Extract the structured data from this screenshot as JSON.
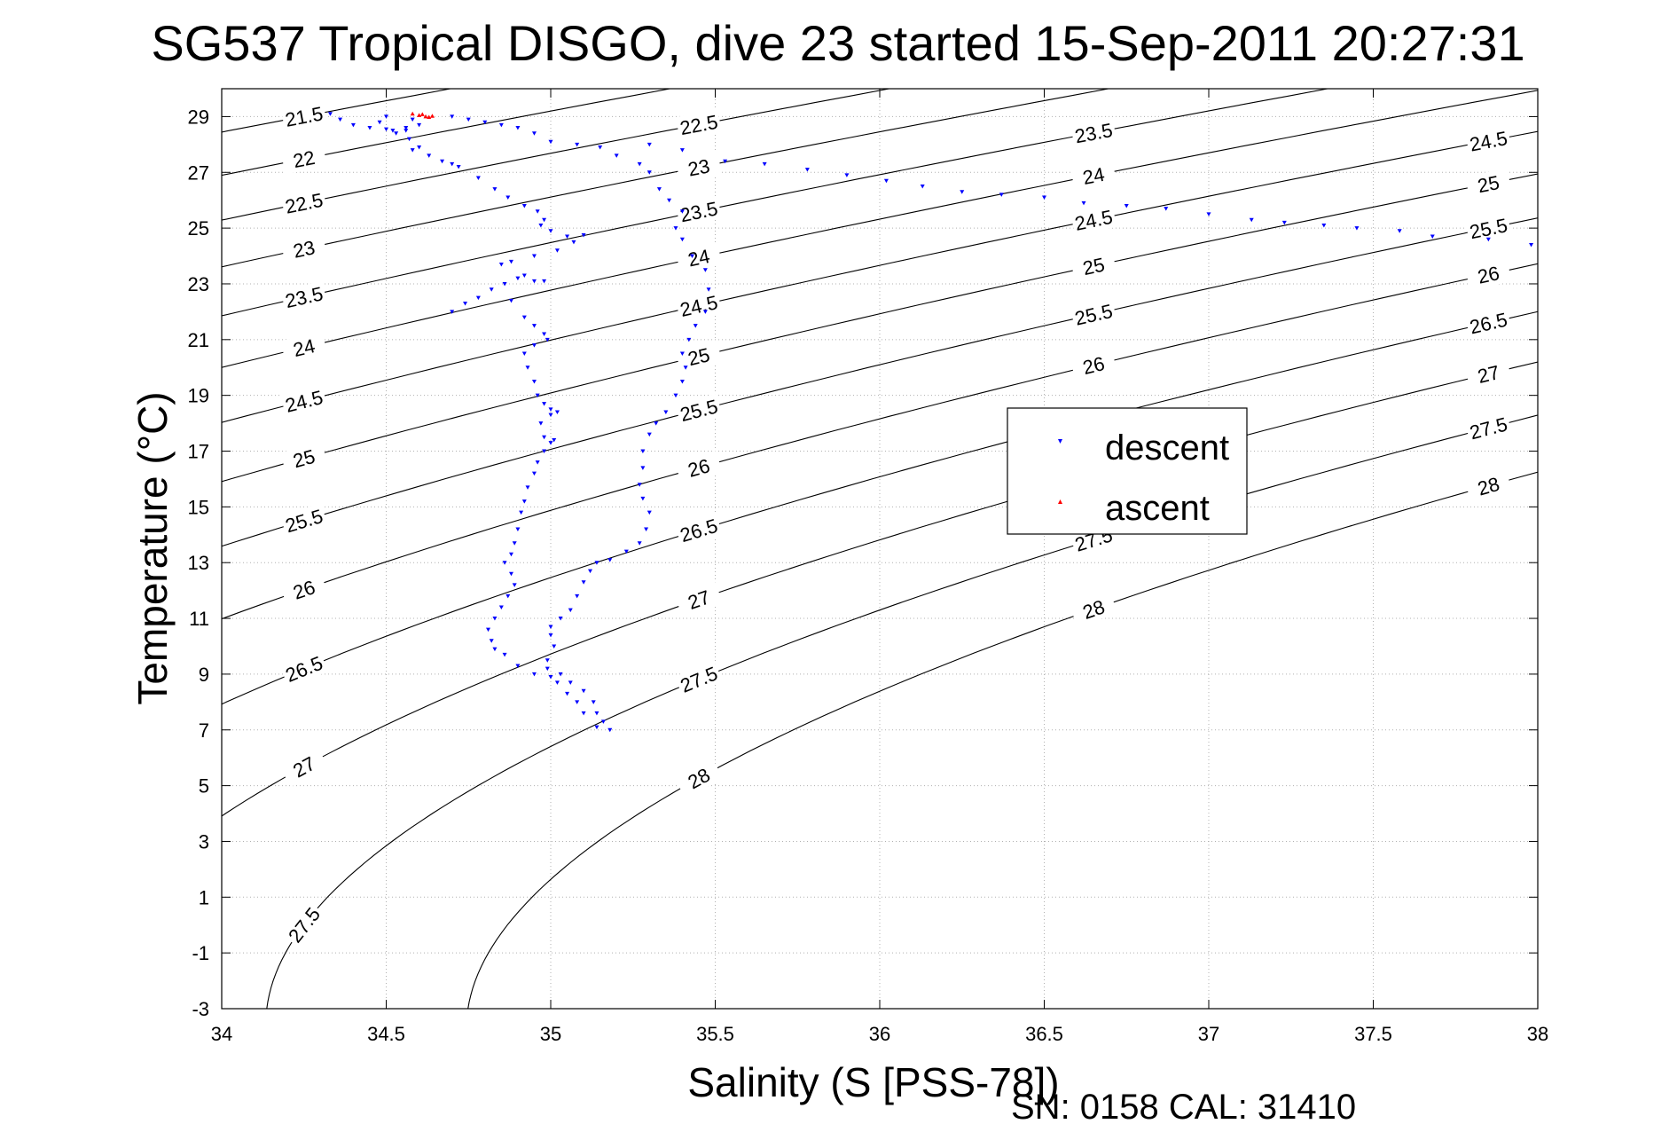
{
  "chart_data": {
    "type": "scatter",
    "title": "SG537 Tropical DISGO, dive 23 started 15-Sep-2011 20:27:31",
    "xlabel": "Salinity (S [PSS-78])",
    "ylabel": "Temperature (°C)",
    "footer": "SN: 0158  CAL: 31410",
    "xlim": [
      34,
      38
    ],
    "ylim": [
      -3,
      30
    ],
    "x_ticks": [
      34,
      34.5,
      35,
      35.5,
      36,
      36.5,
      37,
      37.5,
      38
    ],
    "y_ticks": [
      -3,
      -1,
      1,
      3,
      5,
      7,
      9,
      11,
      13,
      15,
      17,
      19,
      21,
      23,
      25,
      27,
      29
    ],
    "grid": true,
    "legend_position": "right-middle",
    "density_contours": [
      21.5,
      22,
      22.5,
      23,
      23.5,
      24,
      24.5,
      25,
      25.5,
      26,
      26.5,
      27,
      27.5,
      28
    ],
    "colors": {
      "descent": "#0000ff",
      "ascent": "#ff0000",
      "contour": "#000000",
      "grid": "#c0c0c0"
    },
    "series": [
      {
        "name": "descent",
        "marker": "triangle-down",
        "points": [
          [
            34.33,
            29.1
          ],
          [
            34.36,
            28.9
          ],
          [
            34.4,
            28.7
          ],
          [
            34.45,
            28.6
          ],
          [
            34.5,
            28.55
          ],
          [
            34.56,
            28.6
          ],
          [
            34.6,
            28.7
          ],
          [
            34.56,
            28.5
          ],
          [
            34.53,
            28.4
          ],
          [
            34.52,
            28.5
          ],
          [
            34.48,
            28.8
          ],
          [
            34.5,
            29.0
          ],
          [
            34.58,
            28.9
          ],
          [
            34.57,
            28.2
          ],
          [
            34.6,
            27.9
          ],
          [
            34.58,
            27.8
          ],
          [
            34.63,
            27.6
          ],
          [
            34.67,
            27.4
          ],
          [
            34.72,
            27.2
          ],
          [
            34.7,
            27.3
          ],
          [
            34.78,
            26.8
          ],
          [
            34.83,
            26.4
          ],
          [
            34.87,
            26.1
          ],
          [
            34.92,
            25.8
          ],
          [
            34.96,
            25.6
          ],
          [
            34.98,
            25.3
          ],
          [
            34.97,
            25.1
          ],
          [
            35.0,
            24.9
          ],
          [
            35.05,
            24.7
          ],
          [
            35.1,
            24.75
          ],
          [
            35.07,
            24.5
          ],
          [
            35.02,
            24.2
          ],
          [
            34.95,
            24.0
          ],
          [
            34.88,
            23.8
          ],
          [
            34.85,
            23.7
          ],
          [
            34.92,
            23.3
          ],
          [
            34.98,
            23.1
          ],
          [
            34.95,
            23.1
          ],
          [
            34.9,
            23.2
          ],
          [
            34.86,
            23.0
          ],
          [
            34.82,
            22.8
          ],
          [
            34.78,
            22.5
          ],
          [
            34.74,
            22.3
          ],
          [
            34.7,
            22.0
          ],
          [
            34.88,
            22.4
          ],
          [
            34.92,
            21.8
          ],
          [
            34.95,
            21.5
          ],
          [
            34.98,
            21.2
          ],
          [
            34.99,
            21.0
          ],
          [
            34.95,
            20.8
          ],
          [
            34.92,
            20.5
          ],
          [
            34.93,
            20.0
          ],
          [
            34.95,
            19.5
          ],
          [
            34.96,
            19.0
          ],
          [
            34.98,
            18.7
          ],
          [
            35.0,
            18.5
          ],
          [
            35.02,
            18.4
          ],
          [
            35.0,
            18.3
          ],
          [
            34.97,
            18.0
          ],
          [
            34.98,
            17.5
          ],
          [
            35.0,
            17.3
          ],
          [
            35.01,
            17.4
          ],
          [
            34.98,
            17.0
          ],
          [
            34.96,
            16.6
          ],
          [
            34.95,
            16.2
          ],
          [
            34.93,
            15.7
          ],
          [
            34.92,
            15.2
          ],
          [
            34.91,
            14.8
          ],
          [
            34.9,
            14.2
          ],
          [
            34.89,
            13.7
          ],
          [
            34.88,
            13.3
          ],
          [
            34.86,
            13.0
          ],
          [
            34.88,
            12.6
          ],
          [
            34.89,
            12.2
          ],
          [
            34.87,
            11.8
          ],
          [
            34.85,
            11.4
          ],
          [
            34.83,
            11.0
          ],
          [
            34.81,
            10.6
          ],
          [
            34.82,
            10.2
          ],
          [
            34.83,
            9.9
          ],
          [
            34.86,
            9.7
          ],
          [
            34.9,
            9.3
          ],
          [
            34.95,
            9.0
          ],
          [
            35.0,
            8.9
          ],
          [
            35.03,
            9.0
          ],
          [
            35.06,
            8.7
          ],
          [
            35.1,
            8.4
          ],
          [
            35.13,
            8.0
          ],
          [
            35.14,
            7.6
          ],
          [
            35.16,
            7.3
          ],
          [
            35.18,
            7.0
          ],
          [
            35.14,
            7.1
          ],
          [
            35.1,
            7.6
          ],
          [
            35.08,
            8.0
          ],
          [
            35.05,
            8.3
          ],
          [
            35.02,
            8.7
          ],
          [
            34.99,
            9.2
          ],
          [
            34.99,
            9.5
          ],
          [
            35.01,
            10.0
          ],
          [
            35.0,
            10.4
          ],
          [
            35.0,
            10.7
          ],
          [
            35.03,
            11.0
          ],
          [
            35.06,
            11.3
          ],
          [
            35.08,
            11.8
          ],
          [
            35.1,
            12.3
          ],
          [
            35.12,
            12.7
          ],
          [
            35.14,
            13.0
          ],
          [
            35.18,
            13.1
          ],
          [
            35.23,
            13.4
          ],
          [
            35.27,
            13.7
          ],
          [
            35.29,
            14.2
          ],
          [
            35.3,
            14.8
          ],
          [
            35.28,
            15.3
          ],
          [
            35.27,
            15.8
          ],
          [
            35.28,
            16.4
          ],
          [
            35.28,
            17.0
          ],
          [
            35.3,
            17.6
          ],
          [
            35.32,
            18.0
          ],
          [
            35.35,
            18.4
          ],
          [
            35.38,
            19.0
          ],
          [
            35.4,
            19.5
          ],
          [
            35.41,
            20.0
          ],
          [
            35.4,
            20.5
          ],
          [
            35.42,
            21.0
          ],
          [
            35.44,
            21.5
          ],
          [
            35.47,
            22.0
          ],
          [
            35.48,
            22.8
          ],
          [
            35.47,
            23.5
          ],
          [
            35.43,
            24.0
          ],
          [
            35.4,
            24.6
          ],
          [
            35.38,
            25.0
          ],
          [
            35.4,
            25.6
          ],
          [
            35.36,
            26.0
          ],
          [
            35.33,
            26.4
          ],
          [
            35.3,
            27.0
          ],
          [
            35.27,
            27.3
          ],
          [
            35.2,
            27.6
          ],
          [
            35.15,
            27.9
          ],
          [
            35.08,
            28.0
          ],
          [
            35.0,
            28.1
          ],
          [
            34.95,
            28.4
          ],
          [
            34.9,
            28.6
          ],
          [
            34.85,
            28.7
          ],
          [
            34.8,
            28.8
          ],
          [
            34.75,
            28.9
          ],
          [
            34.7,
            29.0
          ],
          [
            35.3,
            28.0
          ],
          [
            35.4,
            27.8
          ],
          [
            35.53,
            27.4
          ],
          [
            35.65,
            27.3
          ],
          [
            35.78,
            27.1
          ],
          [
            35.9,
            26.9
          ],
          [
            36.02,
            26.7
          ],
          [
            36.13,
            26.5
          ],
          [
            36.25,
            26.3
          ],
          [
            36.37,
            26.2
          ],
          [
            36.5,
            26.1
          ],
          [
            36.62,
            25.9
          ],
          [
            36.75,
            25.8
          ],
          [
            36.87,
            25.7
          ],
          [
            37.0,
            25.5
          ],
          [
            37.13,
            25.3
          ],
          [
            37.23,
            25.2
          ],
          [
            37.35,
            25.1
          ],
          [
            37.45,
            25.0
          ],
          [
            37.58,
            24.9
          ],
          [
            37.68,
            24.7
          ],
          [
            37.85,
            24.6
          ],
          [
            37.98,
            24.4
          ]
        ]
      },
      {
        "name": "ascent",
        "marker": "triangle-up",
        "points": [
          [
            34.58,
            29.1
          ],
          [
            34.6,
            29.05
          ],
          [
            34.62,
            29.0
          ],
          [
            34.64,
            29.02
          ],
          [
            34.61,
            29.08
          ],
          [
            34.63,
            28.98
          ]
        ]
      }
    ]
  }
}
